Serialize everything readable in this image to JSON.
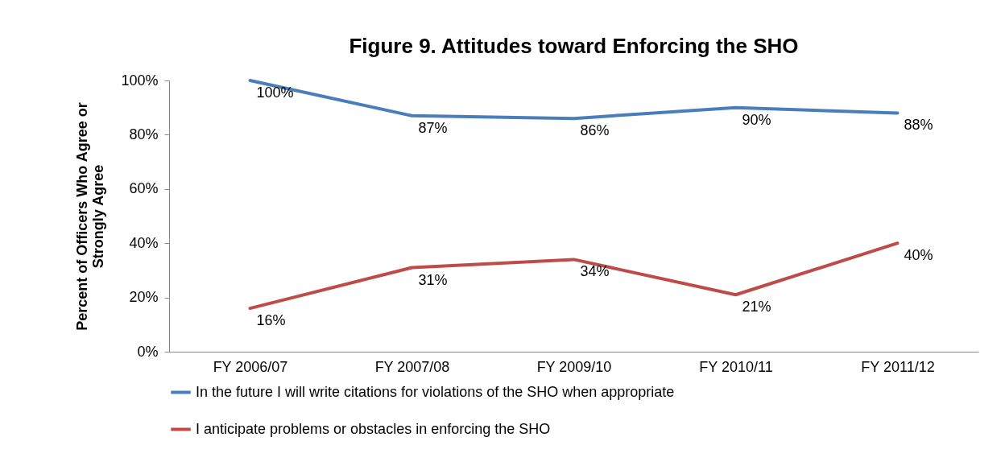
{
  "chart_data": {
    "type": "line",
    "title": "Figure 9. Attitudes toward Enforcing the SHO",
    "ylabel": "Percent of Officers Who Agree or Strongly Agree",
    "categories": [
      "FY 2006/07",
      "FY 2007/08",
      "FY 2009/10",
      "FY 2010/11",
      "FY 2011/12"
    ],
    "series": [
      {
        "name": "In the future I will write citations for violations of the SHO when appropriate",
        "color": "#4a7ebb",
        "values": [
          100,
          87,
          86,
          90,
          88
        ],
        "value_labels": [
          "100%",
          "87%",
          "86%",
          "90%",
          "88%"
        ]
      },
      {
        "name": "I anticipate problems or obstacles in enforcing the SHO",
        "color": "#be4b48",
        "values": [
          16,
          31,
          34,
          21,
          40
        ],
        "value_labels": [
          "16%",
          "31%",
          "34%",
          "21%",
          "40%"
        ]
      }
    ],
    "ylim": [
      0,
      100
    ],
    "yticks": [
      {
        "value": 0,
        "label": "0%"
      },
      {
        "value": 20,
        "label": "20%"
      },
      {
        "value": 40,
        "label": "40%"
      },
      {
        "value": 60,
        "label": "60%"
      },
      {
        "value": 80,
        "label": "80%"
      },
      {
        "value": 100,
        "label": "100%"
      }
    ],
    "legend": "bottom",
    "grid": false
  }
}
